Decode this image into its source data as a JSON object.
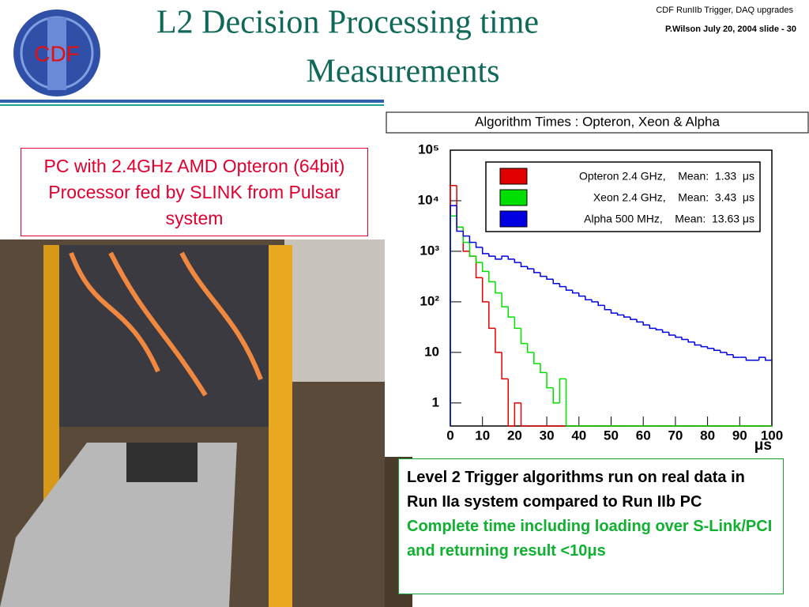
{
  "header": {
    "title_lines": [
      "L2 Decision Processing time",
      "Measurements"
    ],
    "logo_text": "CDF",
    "meeting": "CDF RunIIb  Trigger, DAQ upgrades",
    "slide_info": "P.Wilson   July 20,  2004  slide - 30"
  },
  "photo_caption": "PC with 2.4GHz AMD Opteron (64bit) Processor fed by SLINK from Pulsar system",
  "notes": {
    "main": "Level 2 Trigger algorithms run on real data in Run IIa system compared to Run IIb PC",
    "highlight": "Complete time including loading over S-Link/PCI and returning result <10μs"
  },
  "chart_data": {
    "type": "histogram",
    "title": "Algorithm Times : Opteron, Xeon & Alpha",
    "x_label": "μs",
    "log_y": true,
    "legend": "upper right",
    "bins": [
      0,
      2,
      4,
      6,
      8,
      10,
      12,
      14,
      16,
      18,
      20,
      22,
      24,
      26,
      28,
      30,
      32,
      34,
      36,
      38,
      40,
      42,
      44,
      46,
      48,
      50,
      52,
      54,
      56,
      58,
      60,
      62,
      64,
      66,
      68,
      70,
      72,
      74,
      76,
      78,
      80,
      82,
      84,
      86,
      88,
      90,
      92,
      94,
      96,
      98,
      100
    ],
    "xlim": [
      0,
      100
    ],
    "xticks": [
      0,
      10,
      20,
      30,
      40,
      50,
      60,
      70,
      80,
      90,
      100
    ],
    "ylim": [
      0.35,
      100000
    ],
    "yticks": [
      1,
      10,
      {
        "value": 100,
        "label": "10²"
      },
      {
        "value": 1000,
        "label": "10³"
      },
      {
        "value": 10000,
        "label": "10⁴"
      },
      {
        "value": 100000,
        "label": "10⁵"
      }
    ],
    "series": [
      {
        "name": "Opteron 2.4 GHz,    Mean:  1.33  μs",
        "color": "#e00000",
        "values": [
          20000,
          3000,
          1000,
          800,
          300,
          100,
          30,
          10,
          3,
          0,
          1,
          0,
          0,
          0,
          0,
          0,
          0,
          0,
          0,
          0,
          0,
          0,
          0,
          0,
          0,
          0,
          0,
          0,
          0,
          0,
          0,
          0,
          0,
          0,
          0,
          0,
          0,
          0,
          0,
          0,
          0,
          0,
          0,
          0,
          0,
          0,
          0,
          0,
          0,
          0
        ]
      },
      {
        "name": "Xeon 2.4 GHz,    Mean:  3.43  μs",
        "color": "#00e000",
        "values": [
          5000,
          3000,
          1500,
          800,
          600,
          400,
          250,
          150,
          80,
          50,
          30,
          15,
          10,
          6,
          4,
          2,
          1,
          3,
          0,
          0,
          0,
          0,
          0,
          0,
          0,
          0,
          0,
          0,
          0,
          0,
          0,
          0,
          0,
          0,
          0,
          0,
          0,
          0,
          0,
          0,
          0,
          0,
          0,
          0,
          0,
          0,
          0,
          0,
          0,
          0
        ]
      },
      {
        "name": "Alpha 500 MHz,    Mean:  13.63 μs",
        "color": "#0000e0",
        "values": [
          8000,
          2500,
          2000,
          1500,
          1200,
          900,
          800,
          700,
          800,
          700,
          600,
          500,
          450,
          380,
          320,
          280,
          230,
          200,
          170,
          150,
          130,
          110,
          100,
          85,
          70,
          60,
          55,
          50,
          45,
          40,
          35,
          30,
          28,
          25,
          22,
          20,
          18,
          16,
          14,
          13,
          12,
          11,
          10,
          9,
          8,
          8,
          7,
          7,
          8,
          7
        ]
      }
    ]
  }
}
